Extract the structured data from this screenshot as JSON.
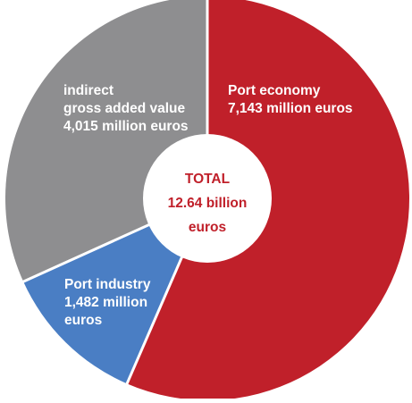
{
  "chart_data": {
    "type": "pie",
    "style": "donut-with-center-label",
    "center_label": [
      "TOTAL",
      "12.64 billion",
      "euros"
    ],
    "slices": [
      {
        "name": "Port economy",
        "value": 7143,
        "label_lines": [
          "Port economy",
          "7,143 million euros"
        ],
        "color": "#c0202a"
      },
      {
        "name": "Port industry",
        "value": 1482,
        "label_lines": [
          "Port industry",
          "1,482 million",
          "euros"
        ],
        "color": "#4a7ec4"
      },
      {
        "name": "indirect gross added value",
        "value": 4015,
        "label_lines": [
          "indirect",
          "gross added value",
          "4,015 million euros"
        ],
        "color": "#8e8e90"
      }
    ],
    "colors": {
      "slice_label_text": "#ffffff",
      "center_text": "#c0202a",
      "center_fill": "#ffffff",
      "separator": "#ffffff"
    },
    "start_angle": "12 o'clock",
    "direction": "clockwise"
  }
}
